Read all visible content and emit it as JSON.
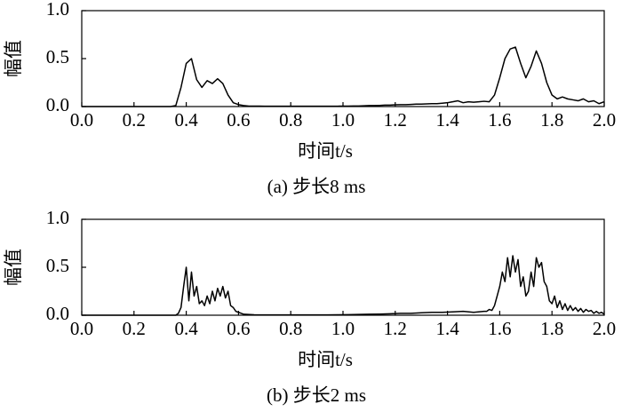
{
  "chart_data": [
    {
      "type": "line",
      "caption": "(a) 步长8 ms",
      "xlabel": "时间t/s",
      "ylabel": "幅值",
      "xlim": [
        0,
        2
      ],
      "ylim": [
        0,
        1
      ],
      "xticks": [
        {
          "value": 0,
          "label": "0.0"
        },
        {
          "value": 0.2,
          "label": "0.2"
        },
        {
          "value": 0.4,
          "label": "0.4"
        },
        {
          "value": 0.6,
          "label": "0.6"
        },
        {
          "value": 0.8,
          "label": "0.8"
        },
        {
          "value": 1,
          "label": "1.0"
        },
        {
          "value": 1.2,
          "label": "1.2"
        },
        {
          "value": 1.4,
          "label": "1.4"
        },
        {
          "value": 1.6,
          "label": "1.6"
        },
        {
          "value": 1.8,
          "label": "1.8"
        },
        {
          "value": 2,
          "label": "2.0"
        }
      ],
      "yticks": [
        {
          "value": 0,
          "label": "0.0"
        },
        {
          "value": 0.5,
          "label": "0.5"
        },
        {
          "value": 1,
          "label": "1.0"
        }
      ],
      "color": "#000000",
      "x": [
        0,
        0.02,
        0.04,
        0.06,
        0.08,
        0.1,
        0.12,
        0.14,
        0.16,
        0.18,
        0.2,
        0.22,
        0.24,
        0.26,
        0.28,
        0.3,
        0.32,
        0.34,
        0.36,
        0.38,
        0.4,
        0.42,
        0.44,
        0.46,
        0.48,
        0.5,
        0.52,
        0.54,
        0.56,
        0.58,
        0.6,
        0.62,
        0.64,
        0.66,
        0.68,
        0.7,
        0.72,
        0.74,
        0.76,
        0.78,
        0.8,
        0.82,
        0.84,
        0.86,
        0.88,
        0.9,
        0.92,
        0.94,
        0.96,
        0.98,
        1,
        1.02,
        1.04,
        1.06,
        1.08,
        1.1,
        1.12,
        1.14,
        1.16,
        1.18,
        1.2,
        1.22,
        1.24,
        1.26,
        1.28,
        1.3,
        1.32,
        1.34,
        1.36,
        1.38,
        1.4,
        1.42,
        1.44,
        1.46,
        1.48,
        1.5,
        1.52,
        1.54,
        1.56,
        1.58,
        1.6,
        1.62,
        1.64,
        1.66,
        1.68,
        1.7,
        1.72,
        1.74,
        1.76,
        1.78,
        1.8,
        1.82,
        1.84,
        1.86,
        1.88,
        1.9,
        1.92,
        1.94,
        1.96,
        1.98,
        2
      ],
      "values": [
        0,
        0,
        0,
        0,
        0,
        0,
        0,
        0,
        0,
        0,
        0,
        0,
        0,
        0,
        0,
        0,
        0,
        0,
        0.01,
        0.2,
        0.45,
        0.5,
        0.28,
        0.2,
        0.27,
        0.24,
        0.29,
        0.24,
        0.12,
        0.04,
        0.02,
        0.01,
        0.005,
        0.005,
        0.005,
        0.004,
        0.004,
        0.004,
        0.003,
        0.003,
        0.003,
        0.003,
        0.003,
        0.003,
        0.003,
        0.003,
        0.003,
        0.004,
        0.004,
        0.004,
        0.005,
        0.005,
        0.006,
        0.006,
        0.008,
        0.01,
        0.01,
        0.012,
        0.015,
        0.015,
        0.018,
        0.02,
        0.02,
        0.022,
        0.025,
        0.025,
        0.028,
        0.03,
        0.03,
        0.035,
        0.04,
        0.05,
        0.06,
        0.04,
        0.05,
        0.045,
        0.05,
        0.055,
        0.05,
        0.12,
        0.3,
        0.5,
        0.6,
        0.62,
        0.45,
        0.3,
        0.42,
        0.58,
        0.45,
        0.25,
        0.12,
        0.08,
        0.1,
        0.08,
        0.07,
        0.06,
        0.08,
        0.05,
        0.06,
        0.03,
        0.05
      ]
    },
    {
      "type": "line",
      "caption": "(b) 步长2 ms",
      "xlabel": "时间t/s",
      "ylabel": "幅值",
      "xlim": [
        0,
        2
      ],
      "ylim": [
        0,
        1
      ],
      "xticks": [
        {
          "value": 0,
          "label": "0.0"
        },
        {
          "value": 0.2,
          "label": "0.2"
        },
        {
          "value": 0.4,
          "label": "0.4"
        },
        {
          "value": 0.6,
          "label": "0.6"
        },
        {
          "value": 0.8,
          "label": "0.8"
        },
        {
          "value": 1,
          "label": "1.0"
        },
        {
          "value": 1.2,
          "label": "1.2"
        },
        {
          "value": 1.4,
          "label": "1.4"
        },
        {
          "value": 1.6,
          "label": "1.6"
        },
        {
          "value": 1.8,
          "label": "1.8"
        },
        {
          "value": 2,
          "label": "2.0"
        }
      ],
      "yticks": [
        {
          "value": 0,
          "label": "0.0"
        },
        {
          "value": 0.5,
          "label": "0.5"
        },
        {
          "value": 1,
          "label": "1.0"
        }
      ],
      "color": "#000000",
      "x": [
        0,
        0.04,
        0.08,
        0.12,
        0.16,
        0.2,
        0.24,
        0.28,
        0.32,
        0.36,
        0.37,
        0.38,
        0.39,
        0.4,
        0.41,
        0.42,
        0.43,
        0.44,
        0.45,
        0.46,
        0.47,
        0.48,
        0.49,
        0.5,
        0.51,
        0.52,
        0.53,
        0.54,
        0.55,
        0.56,
        0.57,
        0.58,
        0.59,
        0.6,
        0.61,
        0.62,
        0.66,
        0.7,
        0.74,
        0.78,
        0.82,
        0.86,
        0.9,
        0.94,
        0.98,
        1.02,
        1.06,
        1.1,
        1.14,
        1.18,
        1.22,
        1.26,
        1.3,
        1.34,
        1.38,
        1.42,
        1.46,
        1.5,
        1.54,
        1.55,
        1.56,
        1.57,
        1.58,
        1.59,
        1.6,
        1.61,
        1.62,
        1.63,
        1.64,
        1.65,
        1.66,
        1.67,
        1.68,
        1.69,
        1.7,
        1.71,
        1.72,
        1.73,
        1.74,
        1.75,
        1.76,
        1.77,
        1.78,
        1.79,
        1.8,
        1.81,
        1.82,
        1.83,
        1.84,
        1.85,
        1.86,
        1.87,
        1.88,
        1.89,
        1.9,
        1.91,
        1.92,
        1.93,
        1.94,
        1.95,
        1.96,
        1.97,
        1.98,
        1.99,
        2
      ],
      "values": [
        0,
        0,
        0,
        0,
        0,
        0,
        0,
        0,
        0,
        0,
        0.02,
        0.08,
        0.3,
        0.5,
        0.15,
        0.45,
        0.2,
        0.3,
        0.12,
        0.15,
        0.1,
        0.2,
        0.12,
        0.25,
        0.15,
        0.28,
        0.2,
        0.3,
        0.18,
        0.25,
        0.1,
        0.08,
        0.04,
        0.03,
        0.02,
        0.01,
        0.005,
        0.004,
        0.003,
        0.003,
        0.003,
        0.003,
        0.003,
        0.003,
        0.005,
        0.006,
        0.008,
        0.01,
        0.012,
        0.015,
        0.02,
        0.02,
        0.025,
        0.03,
        0.03,
        0.035,
        0.04,
        0.03,
        0.04,
        0.04,
        0.06,
        0.05,
        0.1,
        0.2,
        0.3,
        0.45,
        0.35,
        0.6,
        0.4,
        0.62,
        0.45,
        0.58,
        0.3,
        0.4,
        0.2,
        0.25,
        0.45,
        0.3,
        0.6,
        0.5,
        0.55,
        0.35,
        0.3,
        0.15,
        0.12,
        0.2,
        0.08,
        0.15,
        0.06,
        0.12,
        0.05,
        0.1,
        0.05,
        0.08,
        0.04,
        0.07,
        0.03,
        0.06,
        0.04,
        0.05,
        0.02,
        0.04,
        0.02,
        0.03,
        0.01
      ]
    }
  ]
}
